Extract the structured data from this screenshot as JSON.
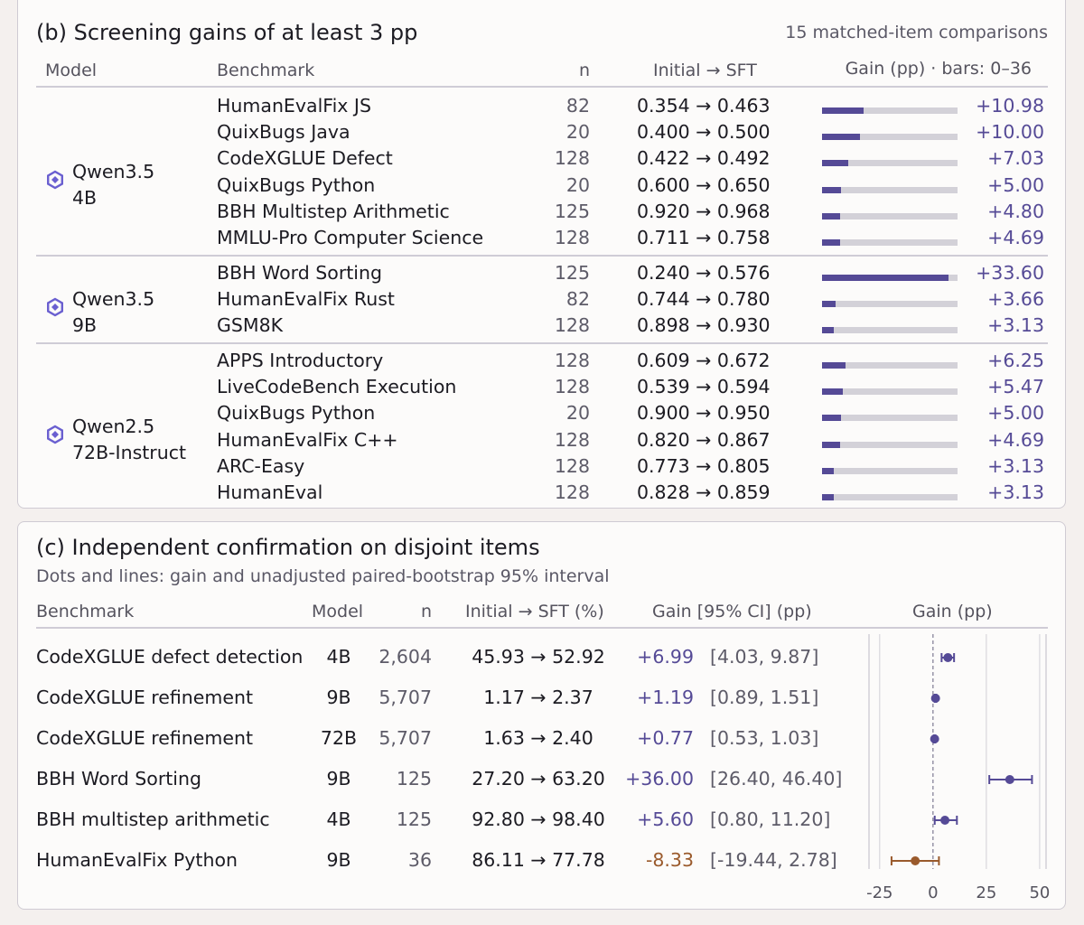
{
  "panel_b": {
    "title": "(b) Screening gains of at least 3 pp",
    "note": "15 matched-item comparisons",
    "headers": {
      "model": "Model",
      "benchmark": "Benchmark",
      "n": "n",
      "transition": "Initial → SFT",
      "gain": "Gain (pp) · bars: 0–36"
    },
    "bar_max": 36,
    "groups": [
      {
        "model_line1": "Qwen3.5",
        "model_line2": "4B",
        "rows": [
          {
            "benchmark": "HumanEvalFix JS",
            "n": "82",
            "transition": "0.354 → 0.463",
            "gain": "+10.98",
            "value": 10.98
          },
          {
            "benchmark": "QuixBugs Java",
            "n": "20",
            "transition": "0.400 → 0.500",
            "gain": "+10.00",
            "value": 10.0
          },
          {
            "benchmark": "CodeXGLUE Defect",
            "n": "128",
            "transition": "0.422 → 0.492",
            "gain": "+7.03",
            "value": 7.03
          },
          {
            "benchmark": "QuixBugs Python",
            "n": "20",
            "transition": "0.600 → 0.650",
            "gain": "+5.00",
            "value": 5.0
          },
          {
            "benchmark": "BBH Multistep Arithmetic",
            "n": "125",
            "transition": "0.920 → 0.968",
            "gain": "+4.80",
            "value": 4.8
          },
          {
            "benchmark": "MMLU-Pro Computer Science",
            "n": "128",
            "transition": "0.711 → 0.758",
            "gain": "+4.69",
            "value": 4.69
          }
        ]
      },
      {
        "model_line1": "Qwen3.5",
        "model_line2": "9B",
        "rows": [
          {
            "benchmark": "BBH Word Sorting",
            "n": "125",
            "transition": "0.240 → 0.576",
            "gain": "+33.60",
            "value": 33.6
          },
          {
            "benchmark": "HumanEvalFix Rust",
            "n": "82",
            "transition": "0.744 → 0.780",
            "gain": "+3.66",
            "value": 3.66
          },
          {
            "benchmark": "GSM8K",
            "n": "128",
            "transition": "0.898 → 0.930",
            "gain": "+3.13",
            "value": 3.13
          }
        ]
      },
      {
        "model_line1": "Qwen2.5",
        "model_line2": "72B-Instruct",
        "rows": [
          {
            "benchmark": "APPS Introductory",
            "n": "128",
            "transition": "0.609 → 0.672",
            "gain": "+6.25",
            "value": 6.25
          },
          {
            "benchmark": "LiveCodeBench Execution",
            "n": "128",
            "transition": "0.539 → 0.594",
            "gain": "+5.47",
            "value": 5.47
          },
          {
            "benchmark": "QuixBugs Python",
            "n": "20",
            "transition": "0.900 → 0.950",
            "gain": "+5.00",
            "value": 5.0
          },
          {
            "benchmark": "HumanEvalFix C++",
            "n": "128",
            "transition": "0.820 → 0.867",
            "gain": "+4.69",
            "value": 4.69
          },
          {
            "benchmark": "ARC-Easy",
            "n": "128",
            "transition": "0.773 → 0.805",
            "gain": "+3.13",
            "value": 3.13
          },
          {
            "benchmark": "HumanEval",
            "n": "128",
            "transition": "0.828 → 0.859",
            "gain": "+3.13",
            "value": 3.13
          }
        ]
      }
    ]
  },
  "panel_c": {
    "title": "(c) Independent confirmation on disjoint items",
    "subtitle": "Dots and lines: gain and unadjusted paired-bootstrap 95% interval",
    "headers": {
      "benchmark": "Benchmark",
      "model": "Model",
      "n": "n",
      "transition": "Initial → SFT (%)",
      "gain": "Gain [95% CI] (pp)",
      "plot": "Gain (pp)"
    },
    "rows": [
      {
        "benchmark": "CodeXGLUE defect detection",
        "model": "4B",
        "n": "2,604",
        "transition": "45.93 → 52.92",
        "gain": "+6.99",
        "ci": "[4.03, 9.87]"
      },
      {
        "benchmark": "CodeXGLUE refinement",
        "model": "9B",
        "n": "5,707",
        "transition": "1.17 → 2.37",
        "gain": "+1.19",
        "ci": "[0.89, 1.51]"
      },
      {
        "benchmark": "CodeXGLUE refinement",
        "model": "72B",
        "n": "5,707",
        "transition": "1.63 → 2.40",
        "gain": "+0.77",
        "ci": "[0.53, 1.03]"
      },
      {
        "benchmark": "BBH Word Sorting",
        "model": "9B",
        "n": "125",
        "transition": "27.20 → 63.20",
        "gain": "+36.00",
        "ci": "[26.40, 46.40]"
      },
      {
        "benchmark": "BBH multistep arithmetic",
        "model": "4B",
        "n": "125",
        "transition": "92.80 → 98.40",
        "gain": "+5.60",
        "ci": "[0.80, 11.20]"
      },
      {
        "benchmark": "HumanEvalFix Python",
        "model": "9B",
        "n": "36",
        "transition": "86.11 → 77.78",
        "gain": "-8.33",
        "ci": "[-19.44, 2.78]"
      }
    ]
  },
  "colors": {
    "positive": "#554a96",
    "negative": "#9a5a2c",
    "bar_track": "#d3d1d8",
    "icon": "#6a5fd0"
  },
  "chart_data": [
    {
      "type": "bar",
      "title": "(b) Screening gains of at least 3 pp",
      "xlabel": "Gain (pp) · bars: 0–36",
      "xlim": [
        0,
        36
      ],
      "series": [
        {
          "name": "Qwen3.5 4B",
          "categories": [
            "HumanEvalFix JS",
            "QuixBugs Java",
            "CodeXGLUE Defect",
            "QuixBugs Python",
            "BBH Multistep Arithmetic",
            "MMLU-Pro Computer Science"
          ],
          "values": [
            10.98,
            10.0,
            7.03,
            5.0,
            4.8,
            4.69
          ]
        },
        {
          "name": "Qwen3.5 9B",
          "categories": [
            "BBH Word Sorting",
            "HumanEvalFix Rust",
            "GSM8K"
          ],
          "values": [
            33.6,
            3.66,
            3.13
          ]
        },
        {
          "name": "Qwen2.5 72B-Instruct",
          "categories": [
            "APPS Introductory",
            "LiveCodeBench Execution",
            "QuixBugs Python",
            "HumanEvalFix C++",
            "ARC-Easy",
            "HumanEval"
          ],
          "values": [
            6.25,
            5.47,
            5.0,
            4.69,
            3.13,
            3.13
          ]
        }
      ]
    },
    {
      "type": "scatter",
      "title": "(c) Independent confirmation on disjoint items",
      "xlabel": "Gain (pp)",
      "xlim": [
        -30,
        53
      ],
      "xticks": [
        -25,
        0,
        25,
        50
      ],
      "reference_line": 0,
      "points": [
        {
          "label": "CodeXGLUE defect detection (4B)",
          "x": 6.99,
          "lo": 4.03,
          "hi": 9.87
        },
        {
          "label": "CodeXGLUE refinement (9B)",
          "x": 1.19,
          "lo": 0.89,
          "hi": 1.51
        },
        {
          "label": "CodeXGLUE refinement (72B)",
          "x": 0.77,
          "lo": 0.53,
          "hi": 1.03
        },
        {
          "label": "BBH Word Sorting (9B)",
          "x": 36.0,
          "lo": 26.4,
          "hi": 46.4
        },
        {
          "label": "BBH multistep arithmetic (4B)",
          "x": 5.6,
          "lo": 0.8,
          "hi": 11.2
        },
        {
          "label": "HumanEvalFix Python (9B)",
          "x": -8.33,
          "lo": -19.44,
          "hi": 2.78
        }
      ]
    }
  ]
}
